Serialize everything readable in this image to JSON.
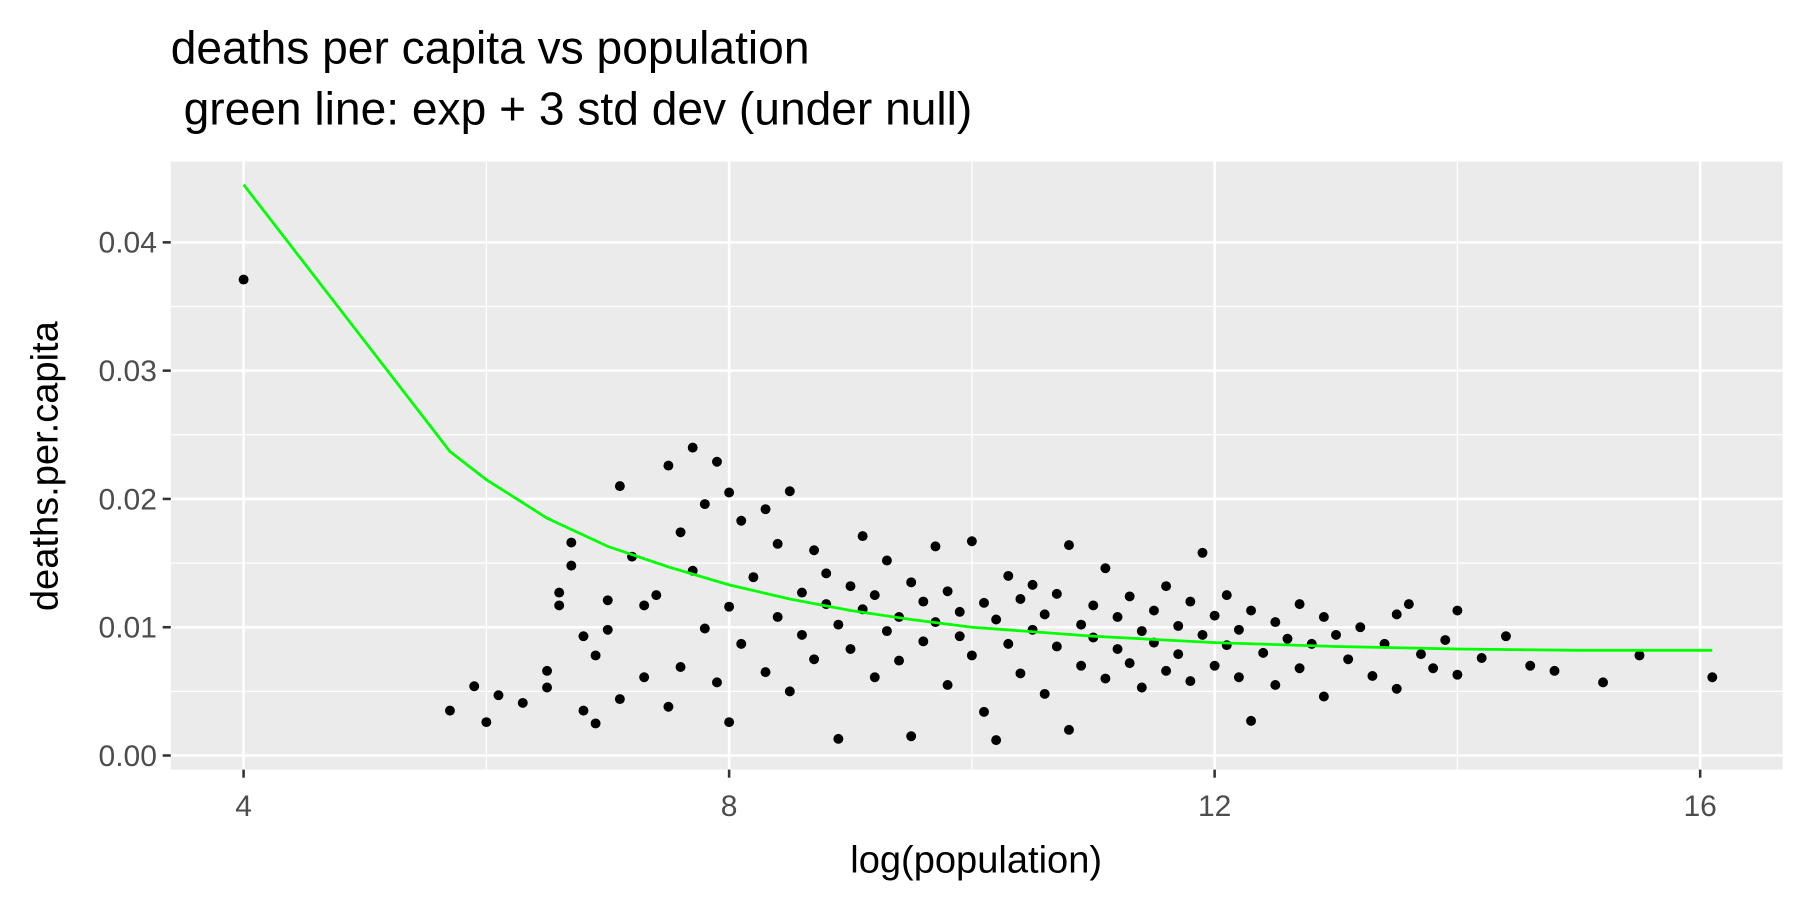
{
  "chart_data": {
    "type": "scatter",
    "title": "deaths per capita vs population",
    "subtitle": " green line: exp + 3 std dev (under null)",
    "x_label": "log(population)",
    "y_label": "deaths.per.capita",
    "xlim": [
      3.4,
      16.68
    ],
    "ylim": [
      -0.0011,
      0.0463
    ],
    "xticks": [
      4,
      8,
      12,
      16
    ],
    "yticks": [
      {
        "value": 0,
        "label": "0.00"
      },
      0.01,
      0.02,
      0.03,
      0.04
    ],
    "x_minor_grid": [
      6,
      10,
      14
    ],
    "y_minor_grid": [
      0.005,
      0.015,
      0.025,
      0.035
    ],
    "grid": true,
    "background": "#ebebeb",
    "points": {
      "color": "#000000",
      "x": [
        4.0,
        5.7,
        5.9,
        6.0,
        6.1,
        6.3,
        6.5,
        6.5,
        6.6,
        6.6,
        6.7,
        6.7,
        6.8,
        6.8,
        6.9,
        6.9,
        7.0,
        7.0,
        7.1,
        7.1,
        7.2,
        7.3,
        7.3,
        7.4,
        7.5,
        7.5,
        7.6,
        7.6,
        7.7,
        7.7,
        7.8,
        7.8,
        7.9,
        7.9,
        8.0,
        8.0,
        8.0,
        8.1,
        8.1,
        8.2,
        8.3,
        8.3,
        8.4,
        8.4,
        8.5,
        8.5,
        8.6,
        8.6,
        8.7,
        8.7,
        8.8,
        8.8,
        8.9,
        8.9,
        9.0,
        9.0,
        9.1,
        9.1,
        9.2,
        9.2,
        9.3,
        9.3,
        9.4,
        9.4,
        9.5,
        9.5,
        9.6,
        9.6,
        9.7,
        9.7,
        9.8,
        9.8,
        9.9,
        9.9,
        10.0,
        10.0,
        10.1,
        10.1,
        10.2,
        10.2,
        10.3,
        10.3,
        10.4,
        10.4,
        10.5,
        10.5,
        10.6,
        10.6,
        10.7,
        10.7,
        10.8,
        10.8,
        10.9,
        10.9,
        11.0,
        11.0,
        11.1,
        11.1,
        11.2,
        11.2,
        11.3,
        11.3,
        11.4,
        11.4,
        11.5,
        11.5,
        11.6,
        11.6,
        11.7,
        11.7,
        11.8,
        11.8,
        11.9,
        11.9,
        12.0,
        12.0,
        12.1,
        12.1,
        12.2,
        12.2,
        12.3,
        12.3,
        12.4,
        12.5,
        12.5,
        12.6,
        12.7,
        12.7,
        12.8,
        12.9,
        12.9,
        13.0,
        13.1,
        13.2,
        13.3,
        13.4,
        13.5,
        13.5,
        13.6,
        13.7,
        13.8,
        13.9,
        14.0,
        14.0,
        14.2,
        14.4,
        14.6,
        14.8,
        15.2,
        15.5,
        16.1
      ],
      "y": [
        0.0371,
        0.0035,
        0.0054,
        0.0026,
        0.0047,
        0.0041,
        0.0053,
        0.0066,
        0.0117,
        0.0127,
        0.0166,
        0.0148,
        0.0093,
        0.0035,
        0.0025,
        0.0078,
        0.0098,
        0.0121,
        0.021,
        0.0044,
        0.0155,
        0.0061,
        0.0117,
        0.0125,
        0.0226,
        0.0038,
        0.0174,
        0.0069,
        0.024,
        0.0144,
        0.0196,
        0.0099,
        0.0229,
        0.0057,
        0.0026,
        0.0116,
        0.0205,
        0.0183,
        0.0087,
        0.0139,
        0.0192,
        0.0065,
        0.0108,
        0.0165,
        0.0206,
        0.005,
        0.0127,
        0.0094,
        0.016,
        0.0075,
        0.0118,
        0.0142,
        0.0013,
        0.0102,
        0.0132,
        0.0083,
        0.0171,
        0.0114,
        0.0061,
        0.0125,
        0.0152,
        0.0097,
        0.0108,
        0.0074,
        0.0015,
        0.0135,
        0.012,
        0.0089,
        0.0163,
        0.0104,
        0.0055,
        0.0128,
        0.0112,
        0.0093,
        0.0167,
        0.0078,
        0.0119,
        0.0034,
        0.0012,
        0.0106,
        0.014,
        0.0087,
        0.0122,
        0.0064,
        0.0098,
        0.0133,
        0.011,
        0.0048,
        0.0126,
        0.0085,
        0.0164,
        0.002,
        0.0102,
        0.007,
        0.0117,
        0.0092,
        0.0146,
        0.006,
        0.0108,
        0.0083,
        0.0124,
        0.0072,
        0.0097,
        0.0053,
        0.0113,
        0.0088,
        0.0132,
        0.0066,
        0.0101,
        0.0079,
        0.012,
        0.0058,
        0.0158,
        0.0094,
        0.0109,
        0.007,
        0.0086,
        0.0125,
        0.0061,
        0.0098,
        0.0027,
        0.0113,
        0.008,
        0.0104,
        0.0055,
        0.0091,
        0.0118,
        0.0068,
        0.0087,
        0.0108,
        0.0046,
        0.0094,
        0.0075,
        0.01,
        0.0062,
        0.0087,
        0.011,
        0.0052,
        0.0118,
        0.0079,
        0.0068,
        0.009,
        0.0113,
        0.0063,
        0.0076,
        0.0093,
        0.007,
        0.0066,
        0.0057,
        0.0078,
        0.0061
      ]
    },
    "line": {
      "color": "#00ff00",
      "x": [
        4.0,
        5.7,
        6.0,
        6.5,
        7.0,
        7.5,
        8.0,
        8.5,
        9.0,
        9.5,
        10.0,
        11.0,
        12.0,
        13.0,
        14.0,
        15.0,
        16.1
      ],
      "y": [
        0.0445,
        0.0237,
        0.0215,
        0.0185,
        0.0163,
        0.0147,
        0.0133,
        0.0122,
        0.0113,
        0.0106,
        0.01,
        0.0093,
        0.0088,
        0.0085,
        0.0083,
        0.0082,
        0.0082
      ]
    }
  }
}
